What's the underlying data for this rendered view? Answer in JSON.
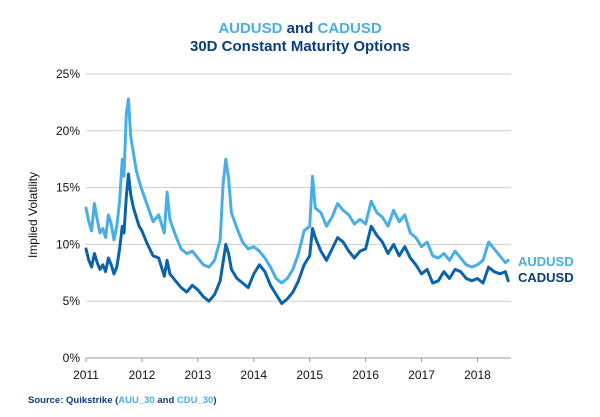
{
  "title": {
    "line1_series_a": "AUDUSD",
    "line1_joiner": "and",
    "line1_series_b": "CADUSD",
    "line2": "30D Constant Maturity Options"
  },
  "source": {
    "prefix": "Source: Quikstrike (",
    "code_a": "AUU_30",
    "joiner": " and ",
    "code_b": "CDU_30",
    "suffix": ")"
  },
  "colors": {
    "audusd": "#4aaee6",
    "cadusd": "#0b63a8",
    "title_dark": "#0b3c7d",
    "grid": "#cfcfcf"
  },
  "chart_data": {
    "type": "line",
    "title": "AUDUSD and CADUSD 30D Constant Maturity Options",
    "xlabel": "",
    "ylabel": "Implied Volatility",
    "xlim": [
      2011,
      2018.6
    ],
    "ylim": [
      0,
      25
    ],
    "x_ticks": [
      "2011",
      "2012",
      "2013",
      "2014",
      "2015",
      "2016",
      "2017",
      "2018"
    ],
    "y_ticks": [
      "0%",
      "5%",
      "10%",
      "15%",
      "20%",
      "25%"
    ],
    "grid": "horizontal",
    "legend_position": "right",
    "series": [
      {
        "name": "AUDUSD",
        "x": [
          2011.0,
          2011.05,
          2011.1,
          2011.15,
          2011.2,
          2011.25,
          2011.3,
          2011.35,
          2011.4,
          2011.45,
          2011.5,
          2011.55,
          2011.6,
          2011.65,
          2011.68,
          2011.72,
          2011.76,
          2011.8,
          2011.85,
          2011.9,
          2011.95,
          2012.0,
          2012.1,
          2012.2,
          2012.3,
          2012.4,
          2012.45,
          2012.5,
          2012.6,
          2012.7,
          2012.8,
          2012.9,
          2013.0,
          2013.1,
          2013.2,
          2013.3,
          2013.4,
          2013.45,
          2013.5,
          2013.55,
          2013.6,
          2013.7,
          2013.8,
          2013.9,
          2014.0,
          2014.1,
          2014.2,
          2014.3,
          2014.4,
          2014.5,
          2014.6,
          2014.7,
          2014.8,
          2014.9,
          2015.0,
          2015.05,
          2015.1,
          2015.2,
          2015.3,
          2015.4,
          2015.5,
          2015.6,
          2015.7,
          2015.8,
          2015.9,
          2016.0,
          2016.1,
          2016.2,
          2016.3,
          2016.4,
          2016.5,
          2016.6,
          2016.7,
          2016.8,
          2016.9,
          2017.0,
          2017.1,
          2017.2,
          2017.3,
          2017.4,
          2017.5,
          2017.6,
          2017.7,
          2017.8,
          2017.9,
          2018.0,
          2018.1,
          2018.2,
          2018.3,
          2018.4,
          2018.5,
          2018.55
        ],
        "y": [
          13.2,
          12.0,
          11.2,
          13.6,
          12.2,
          11.0,
          11.4,
          10.6,
          12.6,
          11.8,
          10.4,
          11.6,
          13.8,
          17.5,
          16.0,
          21.5,
          22.8,
          19.5,
          18.0,
          16.5,
          15.6,
          14.8,
          13.4,
          12.0,
          12.6,
          11.0,
          14.6,
          12.2,
          10.8,
          9.6,
          9.2,
          9.4,
          8.8,
          8.2,
          8.0,
          8.6,
          10.4,
          15.2,
          17.5,
          15.8,
          12.8,
          11.4,
          10.2,
          9.6,
          9.8,
          9.4,
          8.8,
          8.0,
          7.0,
          6.6,
          7.0,
          7.8,
          9.2,
          11.2,
          11.6,
          16.0,
          13.2,
          12.8,
          11.6,
          12.4,
          13.6,
          13.0,
          12.6,
          11.8,
          12.2,
          11.8,
          13.8,
          12.8,
          12.4,
          11.6,
          13.0,
          12.0,
          12.6,
          11.0,
          10.6,
          9.8,
          10.2,
          9.0,
          8.8,
          9.2,
          8.6,
          9.4,
          8.8,
          8.2,
          8.0,
          8.2,
          8.6,
          10.2,
          9.6,
          9.0,
          8.4,
          8.6
        ]
      },
      {
        "name": "CADUSD",
        "x": [
          2011.0,
          2011.05,
          2011.1,
          2011.15,
          2011.2,
          2011.25,
          2011.3,
          2011.35,
          2011.4,
          2011.45,
          2011.5,
          2011.55,
          2011.6,
          2011.65,
          2011.68,
          2011.72,
          2011.76,
          2011.8,
          2011.85,
          2011.9,
          2011.95,
          2012.0,
          2012.1,
          2012.2,
          2012.3,
          2012.4,
          2012.45,
          2012.5,
          2012.6,
          2012.7,
          2012.8,
          2012.9,
          2013.0,
          2013.1,
          2013.2,
          2013.3,
          2013.4,
          2013.45,
          2013.5,
          2013.55,
          2013.6,
          2013.7,
          2013.8,
          2013.9,
          2014.0,
          2014.1,
          2014.2,
          2014.3,
          2014.4,
          2014.5,
          2014.6,
          2014.7,
          2014.8,
          2014.9,
          2015.0,
          2015.05,
          2015.1,
          2015.2,
          2015.3,
          2015.4,
          2015.5,
          2015.6,
          2015.7,
          2015.8,
          2015.9,
          2016.0,
          2016.1,
          2016.2,
          2016.3,
          2016.4,
          2016.5,
          2016.6,
          2016.7,
          2016.8,
          2016.9,
          2017.0,
          2017.1,
          2017.2,
          2017.3,
          2017.4,
          2017.5,
          2017.6,
          2017.7,
          2017.8,
          2017.9,
          2018.0,
          2018.1,
          2018.2,
          2018.3,
          2018.4,
          2018.5,
          2018.55
        ],
        "y": [
          9.6,
          8.6,
          8.0,
          9.2,
          8.4,
          7.8,
          8.2,
          7.6,
          8.8,
          8.2,
          7.4,
          8.0,
          9.6,
          11.6,
          11.0,
          14.2,
          16.2,
          14.4,
          13.2,
          12.4,
          11.6,
          11.2,
          10.0,
          9.0,
          8.8,
          7.2,
          8.6,
          7.4,
          6.8,
          6.2,
          5.8,
          6.4,
          6.0,
          5.4,
          5.0,
          5.6,
          6.8,
          8.4,
          10.0,
          9.2,
          7.8,
          7.0,
          6.6,
          6.2,
          7.4,
          8.2,
          7.6,
          6.4,
          5.6,
          4.8,
          5.2,
          5.8,
          6.8,
          8.2,
          9.0,
          11.4,
          10.6,
          9.4,
          8.6,
          9.6,
          10.6,
          10.2,
          9.4,
          8.8,
          9.4,
          9.6,
          11.6,
          10.8,
          10.2,
          9.2,
          10.0,
          9.0,
          9.8,
          8.8,
          8.2,
          7.4,
          7.8,
          6.6,
          6.8,
          7.6,
          7.0,
          7.8,
          7.6,
          7.0,
          6.8,
          7.0,
          6.6,
          8.0,
          7.6,
          7.4,
          7.6,
          6.8
        ]
      }
    ]
  }
}
